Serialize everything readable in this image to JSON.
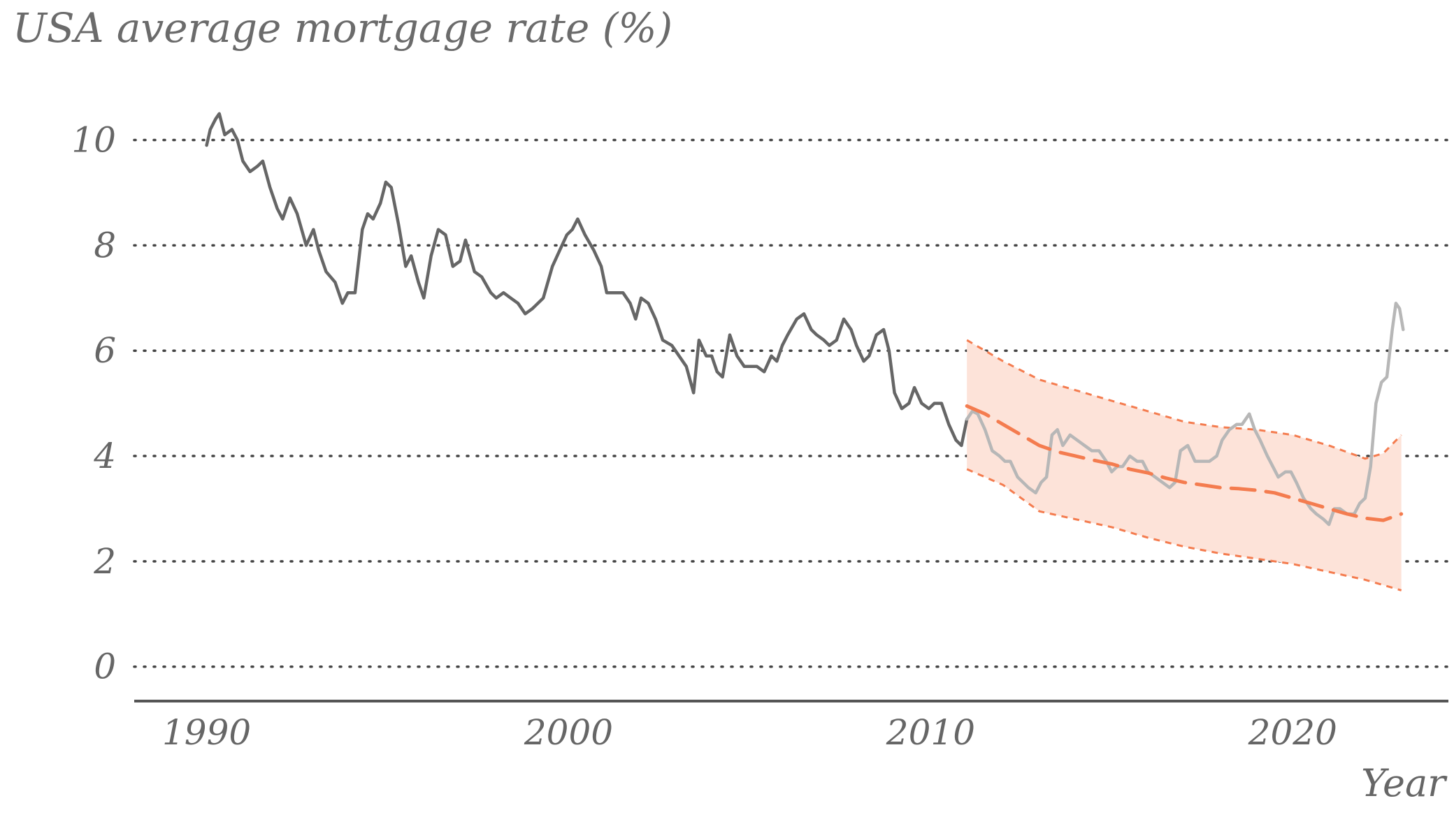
{
  "chart_data": {
    "type": "line",
    "title": "USA average mortgage rate (%)",
    "xlabel": "Year",
    "ylabel": "",
    "xlim": [
      1988.0,
      2024.3
    ],
    "ylim": [
      -0.6,
      11.2
    ],
    "x_ticks": [
      1990,
      2000,
      2010,
      2020
    ],
    "y_ticks": [
      0,
      2,
      4,
      6,
      8,
      10
    ],
    "grid": "horizontal-dotted",
    "colors": {
      "historical": "#666666",
      "observed_after_fit": "#b7b7b7",
      "forecast": "#f47c4f",
      "band_fill": "#fde3d9",
      "grid": "#444444",
      "axis": "#555555"
    },
    "series": [
      {
        "role": "historical",
        "points": [
          [
            1990.0,
            9.9
          ],
          [
            1990.1,
            10.2
          ],
          [
            1990.25,
            10.4
          ],
          [
            1990.35,
            10.5
          ],
          [
            1990.5,
            10.1
          ],
          [
            1990.7,
            10.2
          ],
          [
            1990.85,
            10.0
          ],
          [
            1991.0,
            9.6
          ],
          [
            1991.2,
            9.4
          ],
          [
            1991.4,
            9.5
          ],
          [
            1991.55,
            9.6
          ],
          [
            1991.75,
            9.1
          ],
          [
            1991.95,
            8.7
          ],
          [
            1992.1,
            8.5
          ],
          [
            1992.3,
            8.9
          ],
          [
            1992.5,
            8.6
          ],
          [
            1992.75,
            8.0
          ],
          [
            1992.95,
            8.3
          ],
          [
            1993.1,
            7.9
          ],
          [
            1993.3,
            7.5
          ],
          [
            1993.55,
            7.3
          ],
          [
            1993.75,
            6.9
          ],
          [
            1993.9,
            7.1
          ],
          [
            1994.1,
            7.1
          ],
          [
            1994.3,
            8.3
          ],
          [
            1994.45,
            8.6
          ],
          [
            1994.6,
            8.5
          ],
          [
            1994.8,
            8.8
          ],
          [
            1994.95,
            9.2
          ],
          [
            1995.1,
            9.1
          ],
          [
            1995.3,
            8.4
          ],
          [
            1995.5,
            7.6
          ],
          [
            1995.65,
            7.8
          ],
          [
            1995.85,
            7.3
          ],
          [
            1996.0,
            7.0
          ],
          [
            1996.2,
            7.8
          ],
          [
            1996.4,
            8.3
          ],
          [
            1996.6,
            8.2
          ],
          [
            1996.8,
            7.6
          ],
          [
            1997.0,
            7.7
          ],
          [
            1997.15,
            8.1
          ],
          [
            1997.4,
            7.5
          ],
          [
            1997.6,
            7.4
          ],
          [
            1997.85,
            7.1
          ],
          [
            1998.0,
            7.0
          ],
          [
            1998.2,
            7.1
          ],
          [
            1998.4,
            7.0
          ],
          [
            1998.6,
            6.9
          ],
          [
            1998.8,
            6.7
          ],
          [
            1999.0,
            6.8
          ],
          [
            1999.3,
            7.0
          ],
          [
            1999.55,
            7.6
          ],
          [
            1999.75,
            7.9
          ],
          [
            1999.95,
            8.2
          ],
          [
            2000.1,
            8.3
          ],
          [
            2000.25,
            8.5
          ],
          [
            2000.45,
            8.2
          ],
          [
            2000.7,
            7.9
          ],
          [
            2000.9,
            7.6
          ],
          [
            2001.05,
            7.1
          ],
          [
            2001.3,
            7.1
          ],
          [
            2001.5,
            7.1
          ],
          [
            2001.7,
            6.9
          ],
          [
            2001.85,
            6.6
          ],
          [
            2002.0,
            7.0
          ],
          [
            2002.2,
            6.9
          ],
          [
            2002.4,
            6.6
          ],
          [
            2002.6,
            6.2
          ],
          [
            2002.85,
            6.1
          ],
          [
            2003.05,
            5.9
          ],
          [
            2003.25,
            5.7
          ],
          [
            2003.45,
            5.2
          ],
          [
            2003.6,
            6.2
          ],
          [
            2003.8,
            5.9
          ],
          [
            2003.95,
            5.9
          ],
          [
            2004.1,
            5.6
          ],
          [
            2004.25,
            5.5
          ],
          [
            2004.45,
            6.3
          ],
          [
            2004.65,
            5.9
          ],
          [
            2004.85,
            5.7
          ],
          [
            2005.05,
            5.7
          ],
          [
            2005.2,
            5.7
          ],
          [
            2005.4,
            5.6
          ],
          [
            2005.6,
            5.9
          ],
          [
            2005.75,
            5.8
          ],
          [
            2005.9,
            6.1
          ],
          [
            2006.05,
            6.3
          ],
          [
            2006.3,
            6.6
          ],
          [
            2006.5,
            6.7
          ],
          [
            2006.7,
            6.4
          ],
          [
            2006.85,
            6.3
          ],
          [
            2007.05,
            6.2
          ],
          [
            2007.2,
            6.1
          ],
          [
            2007.4,
            6.2
          ],
          [
            2007.6,
            6.6
          ],
          [
            2007.8,
            6.4
          ],
          [
            2007.95,
            6.1
          ],
          [
            2008.15,
            5.8
          ],
          [
            2008.3,
            5.9
          ],
          [
            2008.5,
            6.3
          ],
          [
            2008.7,
            6.4
          ],
          [
            2008.85,
            6.0
          ],
          [
            2009.0,
            5.2
          ],
          [
            2009.2,
            4.9
          ],
          [
            2009.4,
            5.0
          ],
          [
            2009.55,
            5.3
          ],
          [
            2009.75,
            5.0
          ],
          [
            2009.95,
            4.9
          ],
          [
            2010.1,
            5.0
          ],
          [
            2010.3,
            5.0
          ],
          [
            2010.5,
            4.6
          ],
          [
            2010.7,
            4.3
          ],
          [
            2010.85,
            4.2
          ],
          [
            2011.0,
            4.7
          ]
        ]
      },
      {
        "role": "observed_after_fit",
        "points": [
          [
            2011.0,
            4.7
          ],
          [
            2011.15,
            4.85
          ],
          [
            2011.3,
            4.8
          ],
          [
            2011.5,
            4.5
          ],
          [
            2011.7,
            4.1
          ],
          [
            2011.9,
            4.0
          ],
          [
            2012.05,
            3.9
          ],
          [
            2012.2,
            3.9
          ],
          [
            2012.4,
            3.6
          ],
          [
            2012.55,
            3.5
          ],
          [
            2012.7,
            3.4
          ],
          [
            2012.9,
            3.3
          ],
          [
            2013.05,
            3.5
          ],
          [
            2013.2,
            3.6
          ],
          [
            2013.35,
            4.4
          ],
          [
            2013.5,
            4.5
          ],
          [
            2013.65,
            4.2
          ],
          [
            2013.85,
            4.4
          ],
          [
            2014.05,
            4.3
          ],
          [
            2014.25,
            4.2
          ],
          [
            2014.45,
            4.1
          ],
          [
            2014.65,
            4.1
          ],
          [
            2014.85,
            3.9
          ],
          [
            2015.0,
            3.7
          ],
          [
            2015.15,
            3.8
          ],
          [
            2015.3,
            3.8
          ],
          [
            2015.5,
            4.0
          ],
          [
            2015.7,
            3.9
          ],
          [
            2015.85,
            3.9
          ],
          [
            2016.0,
            3.7
          ],
          [
            2016.2,
            3.6
          ],
          [
            2016.4,
            3.5
          ],
          [
            2016.6,
            3.4
          ],
          [
            2016.75,
            3.5
          ],
          [
            2016.9,
            4.1
          ],
          [
            2017.1,
            4.2
          ],
          [
            2017.3,
            3.9
          ],
          [
            2017.5,
            3.9
          ],
          [
            2017.7,
            3.9
          ],
          [
            2017.9,
            4.0
          ],
          [
            2018.05,
            4.3
          ],
          [
            2018.25,
            4.5
          ],
          [
            2018.45,
            4.6
          ],
          [
            2018.6,
            4.6
          ],
          [
            2018.8,
            4.8
          ],
          [
            2018.95,
            4.5
          ],
          [
            2019.1,
            4.3
          ],
          [
            2019.3,
            4.0
          ],
          [
            2019.45,
            3.8
          ],
          [
            2019.6,
            3.6
          ],
          [
            2019.8,
            3.7
          ],
          [
            2019.95,
            3.7
          ],
          [
            2020.1,
            3.5
          ],
          [
            2020.3,
            3.2
          ],
          [
            2020.5,
            3.0
          ],
          [
            2020.65,
            2.9
          ],
          [
            2020.85,
            2.8
          ],
          [
            2021.0,
            2.7
          ],
          [
            2021.15,
            3.0
          ],
          [
            2021.3,
            3.0
          ],
          [
            2021.5,
            2.9
          ],
          [
            2021.7,
            2.9
          ],
          [
            2021.85,
            3.1
          ],
          [
            2022.0,
            3.2
          ],
          [
            2022.15,
            3.8
          ],
          [
            2022.3,
            5.0
          ],
          [
            2022.45,
            5.4
          ],
          [
            2022.6,
            5.5
          ],
          [
            2022.75,
            6.4
          ],
          [
            2022.85,
            6.9
          ],
          [
            2022.95,
            6.8
          ],
          [
            2023.05,
            6.4
          ]
        ]
      },
      {
        "role": "forecast",
        "points": [
          [
            2011.0,
            4.95
          ],
          [
            2011.5,
            4.8
          ],
          [
            2012.0,
            4.6
          ],
          [
            2012.5,
            4.4
          ],
          [
            2013.0,
            4.2
          ],
          [
            2013.5,
            4.08
          ],
          [
            2014.0,
            4.0
          ],
          [
            2014.5,
            3.92
          ],
          [
            2015.0,
            3.85
          ],
          [
            2015.5,
            3.75
          ],
          [
            2016.0,
            3.68
          ],
          [
            2016.5,
            3.58
          ],
          [
            2017.0,
            3.5
          ],
          [
            2017.5,
            3.45
          ],
          [
            2018.0,
            3.4
          ],
          [
            2018.5,
            3.38
          ],
          [
            2019.0,
            3.35
          ],
          [
            2019.5,
            3.3
          ],
          [
            2020.0,
            3.2
          ],
          [
            2020.5,
            3.1
          ],
          [
            2021.0,
            3.0
          ],
          [
            2021.5,
            2.9
          ],
          [
            2022.0,
            2.82
          ],
          [
            2022.5,
            2.78
          ],
          [
            2023.0,
            2.9
          ]
        ]
      }
    ],
    "band": {
      "role": "confidence_band",
      "upper": [
        [
          2011.0,
          6.2
        ],
        [
          2012.0,
          5.8
        ],
        [
          2013.0,
          5.45
        ],
        [
          2014.0,
          5.25
        ],
        [
          2015.0,
          5.05
        ],
        [
          2016.0,
          4.85
        ],
        [
          2017.0,
          4.65
        ],
        [
          2018.0,
          4.55
        ],
        [
          2019.0,
          4.5
        ],
        [
          2020.0,
          4.4
        ],
        [
          2021.0,
          4.2
        ],
        [
          2022.0,
          3.95
        ],
        [
          2022.5,
          4.05
        ],
        [
          2023.0,
          4.4
        ]
      ],
      "lower": [
        [
          2011.0,
          3.75
        ],
        [
          2012.0,
          3.45
        ],
        [
          2013.0,
          2.95
        ],
        [
          2014.0,
          2.8
        ],
        [
          2015.0,
          2.65
        ],
        [
          2016.0,
          2.45
        ],
        [
          2017.0,
          2.28
        ],
        [
          2018.0,
          2.15
        ],
        [
          2019.0,
          2.05
        ],
        [
          2020.0,
          1.95
        ],
        [
          2021.0,
          1.8
        ],
        [
          2022.0,
          1.65
        ],
        [
          2023.0,
          1.45
        ]
      ]
    }
  }
}
